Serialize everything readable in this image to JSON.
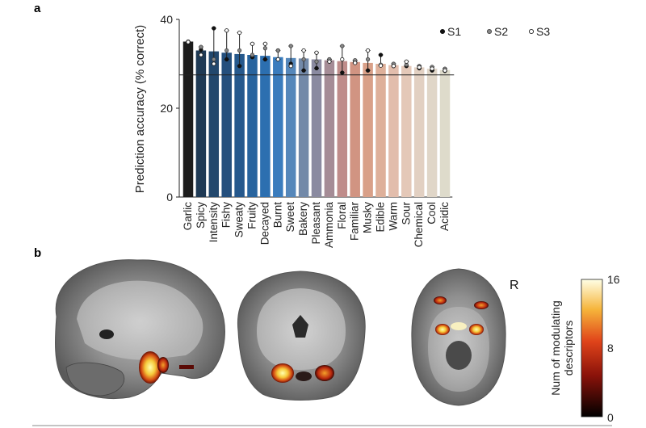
{
  "panel_a_label": "a",
  "panel_b_label": "b",
  "chart_data": {
    "type": "bar",
    "title": "",
    "xlabel": "",
    "ylabel": "Prediction accuracy (% correct)",
    "ylim": [
      0,
      40
    ],
    "yticks": [
      0,
      20,
      40
    ],
    "chance_level": 27.5,
    "categories": [
      "Garlic",
      "Spicy",
      "Intensity",
      "Fishy",
      "Sweaty",
      "Fruity",
      "Decayed",
      "Burnt",
      "Sweet",
      "Bakery",
      "Pleasant",
      "Ammonia",
      "Floral",
      "Familiar",
      "Musky",
      "Edible",
      "Warm",
      "Sour",
      "Chemical",
      "Cool",
      "Acidic"
    ],
    "values": [
      35,
      33,
      32.8,
      32.5,
      32.2,
      32.0,
      31.8,
      31.5,
      31.3,
      31.2,
      31.0,
      30.8,
      30.6,
      30.4,
      30.2,
      30.0,
      29.7,
      29.5,
      29.2,
      28.9,
      28.6
    ],
    "bar_colors": [
      "#1c1c1c",
      "#1f3a55",
      "#22476c",
      "#244f7d",
      "#26598d",
      "#28649e",
      "#2c6fb0",
      "#3a7cbd",
      "#5587ba",
      "#7289a8",
      "#8a8aa0",
      "#a58c96",
      "#bf8c8a",
      "#d19482",
      "#d9a088",
      "#deb09a",
      "#e2bdac",
      "#e4c8b8",
      "#e2d0c2",
      "#e0d6c8",
      "#dedbcb"
    ],
    "subjects": [
      {
        "name": "S1",
        "marker": "filled",
        "values": [
          35,
          33.2,
          38,
          31,
          29.5,
          31.5,
          31,
          33,
          30,
          28.5,
          29,
          31,
          28,
          30.5,
          28.5,
          32,
          29.5,
          29.5,
          29,
          28.5,
          28.4
        ]
      },
      {
        "name": "S2",
        "marker": "gray",
        "values": [
          35,
          33.8,
          31,
          33,
          33,
          32,
          33.5,
          33,
          34,
          31,
          30.5,
          31,
          34,
          30.8,
          31,
          29.8,
          30,
          29.8,
          29.5,
          29.3,
          28.9
        ]
      },
      {
        "name": "S3",
        "marker": "open",
        "values": [
          34.9,
          32,
          30,
          37.5,
          37,
          34.5,
          34.5,
          31,
          29.5,
          33,
          32.5,
          30.5,
          31,
          30.2,
          33,
          29.6,
          29.5,
          30.5,
          29.2,
          28.9,
          28.5
        ]
      }
    ],
    "legend": [
      "S1",
      "S2",
      "S3"
    ],
    "legend_position": "top-right"
  },
  "brain_panel": {
    "views": [
      "sagittal",
      "coronal",
      "axial"
    ],
    "hemisphere_label": "R",
    "colorbar": {
      "label_line1": "Num of modulating",
      "label_line2": "descriptors",
      "min": 0,
      "mid": 8,
      "max": 16,
      "min_label": "0",
      "mid_label": "8",
      "max_label": "16"
    }
  }
}
